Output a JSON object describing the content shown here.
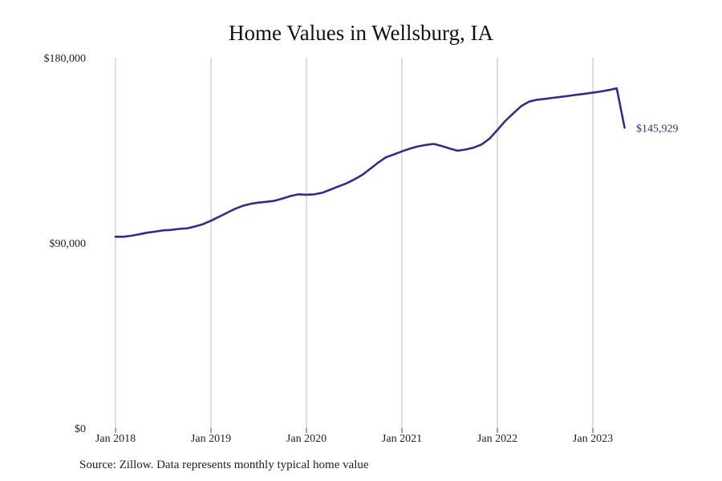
{
  "chart_data": {
    "type": "line",
    "title": "Home Values in Wellsburg, IA",
    "xlabel": "",
    "ylabel": "",
    "ylim": [
      0,
      180000
    ],
    "y_ticks": [
      {
        "value": 0,
        "label": "$0"
      },
      {
        "value": 90000,
        "label": "$90,000"
      },
      {
        "value": 180000,
        "label": "$180,000"
      }
    ],
    "x_ticks": [
      {
        "value": 2018.0,
        "label": "Jan 2018"
      },
      {
        "value": 2019.0,
        "label": "Jan 2019"
      },
      {
        "value": 2020.0,
        "label": "Jan 2020"
      },
      {
        "value": 2021.0,
        "label": "Jan 2021"
      },
      {
        "value": 2022.0,
        "label": "Jan 2022"
      },
      {
        "value": 2023.0,
        "label": "Jan 2023"
      }
    ],
    "xlim": [
      2018.0,
      2023.33
    ],
    "grid": "vertical",
    "line_color": "#2e2e8c",
    "series": [
      {
        "name": "",
        "x": [
          2018.0,
          2018.083,
          2018.167,
          2018.25,
          2018.333,
          2018.417,
          2018.5,
          2018.583,
          2018.667,
          2018.75,
          2018.833,
          2018.917,
          2019.0,
          2019.083,
          2019.167,
          2019.25,
          2019.333,
          2019.417,
          2019.5,
          2019.583,
          2019.667,
          2019.75,
          2019.833,
          2019.917,
          2020.0,
          2020.083,
          2020.167,
          2020.25,
          2020.333,
          2020.417,
          2020.5,
          2020.583,
          2020.667,
          2020.75,
          2020.833,
          2020.917,
          2021.0,
          2021.083,
          2021.167,
          2021.25,
          2021.333,
          2021.417,
          2021.5,
          2021.583,
          2021.667,
          2021.75,
          2021.833,
          2021.917,
          2022.0,
          2022.083,
          2022.167,
          2022.25,
          2022.333,
          2022.417,
          2022.5,
          2022.583,
          2022.667,
          2022.75,
          2022.833,
          2022.917,
          2023.0,
          2023.083,
          2023.167,
          2023.25,
          2023.333
        ],
        "values": [
          93000,
          93000,
          93500,
          94200,
          95000,
          95500,
          96100,
          96300,
          96800,
          97100,
          98000,
          99100,
          100800,
          102700,
          104600,
          106500,
          108000,
          109000,
          109600,
          110000,
          110500,
          111600,
          112800,
          113600,
          113400,
          113600,
          114400,
          115900,
          117400,
          118900,
          120800,
          123000,
          126000,
          129000,
          131600,
          133000,
          134500,
          135800,
          136900,
          137600,
          138100,
          137100,
          135900,
          134800,
          135400,
          136300,
          137800,
          140600,
          144900,
          149300,
          153000,
          156500,
          158700,
          159600,
          160000,
          160500,
          161000,
          161500,
          162000,
          162500,
          163000,
          163600,
          164300,
          165100,
          145929
        ]
      }
    ],
    "end_label": "$145,929",
    "source_note": "Source: Zillow. Data represents monthly typical home value"
  }
}
